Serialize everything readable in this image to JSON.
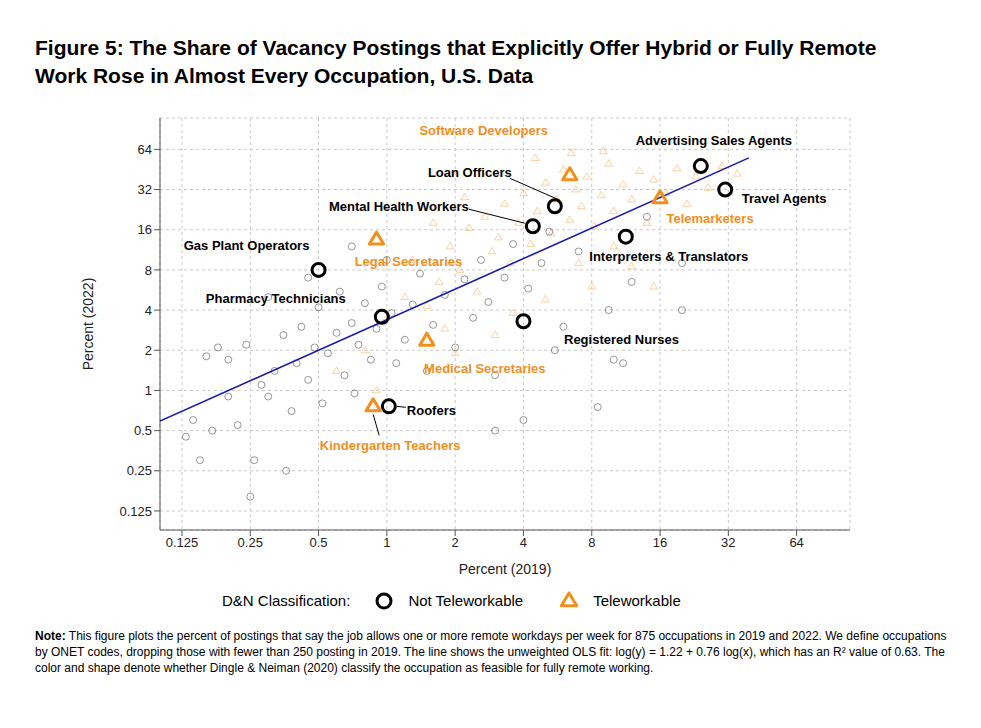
{
  "chart_data": {
    "type": "scatter",
    "title": "Figure 5: The Share of Vacancy Postings that Explicitly Offer Hybrid or Fully Remote Work Rose in Almost Every Occupation, U.S. Data",
    "x_label": "Percent (2019)",
    "y_label": "Percent (2022)",
    "log": true,
    "grid": true,
    "xlim": [
      0.1,
      110
    ],
    "ylim": [
      0.09,
      110
    ],
    "xticks": [
      0.125,
      0.25,
      0.5,
      1,
      2,
      4,
      8,
      16,
      32,
      64
    ],
    "yticks": [
      0.125,
      0.25,
      0.5,
      1,
      2,
      4,
      8,
      16,
      32,
      64
    ],
    "legend_title": "D&N Classification:",
    "series": [
      {
        "name": "Not Teleworkable",
        "color": "#000000",
        "marker": "circle",
        "x": [
          0.13,
          0.14,
          0.16,
          0.18,
          0.2,
          0.22,
          0.24,
          0.17,
          0.26,
          0.28,
          0.3,
          0.32,
          0.35,
          0.38,
          0.4,
          0.42,
          0.45,
          0.48,
          0.5,
          0.52,
          0.55,
          0.6,
          0.62,
          0.65,
          0.7,
          0.72,
          0.75,
          0.8,
          0.85,
          0.9,
          0.95,
          1.05,
          1.1,
          1.2,
          1.3,
          1.4,
          1.5,
          1.6,
          1.8,
          2.0,
          2.2,
          2.4,
          2.6,
          2.8,
          3.0,
          3.3,
          3.6,
          4.2,
          4.8,
          5.2,
          6.0,
          7.0,
          8.5,
          9.5,
          10,
          12,
          14,
          20,
          0.25,
          0.15,
          0.3,
          0.45,
          0.36,
          0.2,
          1.0,
          0.7,
          11,
          4.0,
          3.0,
          5.5,
          20
        ],
        "y": [
          0.45,
          0.6,
          1.8,
          2.1,
          1.7,
          0.55,
          2.2,
          0.5,
          0.3,
          1.1,
          0.9,
          1.4,
          2.6,
          0.7,
          1.6,
          3.0,
          1.2,
          2.1,
          4.2,
          0.8,
          1.9,
          2.7,
          5.5,
          1.3,
          3.2,
          0.95,
          2.2,
          4.5,
          1.7,
          2.9,
          6.0,
          3.8,
          1.6,
          2.4,
          4.4,
          7.5,
          1.4,
          3.1,
          5.2,
          2.1,
          6.8,
          3.5,
          9.5,
          4.6,
          1.3,
          7.0,
          12.5,
          5.8,
          9.0,
          15.5,
          3.0,
          11.0,
          0.75,
          4.0,
          1.7,
          6.5,
          20,
          9.0,
          0.16,
          0.3,
          5.0,
          7.0,
          0.25,
          0.9,
          9.5,
          12.0,
          1.6,
          0.6,
          0.5,
          2.0,
          4.0
        ]
      },
      {
        "name": "Teleworkable",
        "color": "#f28e1c",
        "marker": "triangle",
        "x": [
          0.6,
          0.8,
          1.0,
          1.2,
          1.3,
          1.5,
          1.7,
          1.9,
          2.1,
          2.3,
          2.5,
          2.7,
          2.9,
          3.1,
          3.3,
          3.5,
          3.8,
          4.0,
          4.3,
          4.6,
          5.0,
          5.3,
          5.6,
          6.0,
          6.4,
          6.8,
          7.2,
          7.6,
          8.2,
          8.8,
          9.5,
          10,
          11,
          12,
          13,
          14,
          15,
          17,
          19,
          21,
          23,
          26,
          30,
          35,
          2.0,
          3.0,
          5.0,
          8.0,
          12,
          15,
          0.9,
          1.8,
          4.5,
          6.5,
          9,
          2.2,
          1.6,
          3.6,
          7,
          10
        ],
        "y": [
          1.4,
          2.0,
          3.5,
          5.0,
          9.5,
          4.3,
          6.5,
          12.0,
          8.0,
          16.5,
          5.5,
          20,
          11,
          14,
          25,
          9,
          18,
          30,
          12.5,
          22,
          36,
          15,
          27,
          45,
          19,
          32,
          24,
          40,
          17,
          29,
          50,
          22,
          35,
          27,
          44,
          18,
          38,
          30,
          46,
          25,
          40,
          33,
          48,
          42,
          1.9,
          2.6,
          4.8,
          6.0,
          8.5,
          6.0,
          1.0,
          2.9,
          55,
          60,
          62,
          28,
          18,
          3.8,
          9,
          12
        ]
      }
    ],
    "highlighted": [
      {
        "label": "Software Developers",
        "series": "Teleworkable",
        "x": 6.4,
        "y": 41
      },
      {
        "label": "Advertising Sales Agents",
        "series": "Not Teleworkable",
        "x": 24.2,
        "y": 48
      },
      {
        "label": "Travel Agents",
        "series": "Not Teleworkable",
        "x": 31,
        "y": 32
      },
      {
        "label": "Telemarketers",
        "series": "Teleworkable",
        "x": 16,
        "y": 27.5
      },
      {
        "label": "Loan Officers",
        "series": "Not Teleworkable",
        "x": 5.5,
        "y": 24
      },
      {
        "label": "Mental Health Workers",
        "series": "Not Teleworkable",
        "x": 4.4,
        "y": 17
      },
      {
        "label": "Interpreters & Translators",
        "series": "Not Teleworkable",
        "x": 11.3,
        "y": 14.2
      },
      {
        "label": "Legal Secretaries",
        "series": "Teleworkable",
        "x": 0.9,
        "y": 13.5
      },
      {
        "label": "Gas Plant Operators",
        "series": "Not Teleworkable",
        "x": 0.5,
        "y": 8
      },
      {
        "label": "Pharmacy Technicians",
        "series": "Not Teleworkable",
        "x": 0.95,
        "y": 3.56
      },
      {
        "label": "Medical Secretaries",
        "series": "Teleworkable",
        "x": 1.5,
        "y": 2.36
      },
      {
        "label": "Registered Nurses",
        "series": "Not Teleworkable",
        "x": 4,
        "y": 3.3
      },
      {
        "label": "Roofers",
        "series": "Not Teleworkable",
        "x": 1.02,
        "y": 0.76
      },
      {
        "label": "Kindergarten Teachers",
        "series": "Teleworkable",
        "x": 0.87,
        "y": 0.76
      }
    ],
    "fit_line": {
      "color": "#1a1aaa",
      "x": [
        0.1,
        39.4
      ],
      "y": [
        0.59,
        55.3
      ]
    },
    "note_label": "Note:",
    "note": "This figure plots the percent of postings that say the job allows one or more remote workdays per week for 875 occupations in 2019 and 2022. We define occupations by ONET codes, dropping those with fewer than 250 posting in 2019. The line shows the unweighted OLS fit: log(y) = 1.22 + 0.76 log(x), which has an R² value of 0.63. The color and shape denote whether Dingle & Neiman (2020) classify the occupation as feasible for fully remote working."
  }
}
